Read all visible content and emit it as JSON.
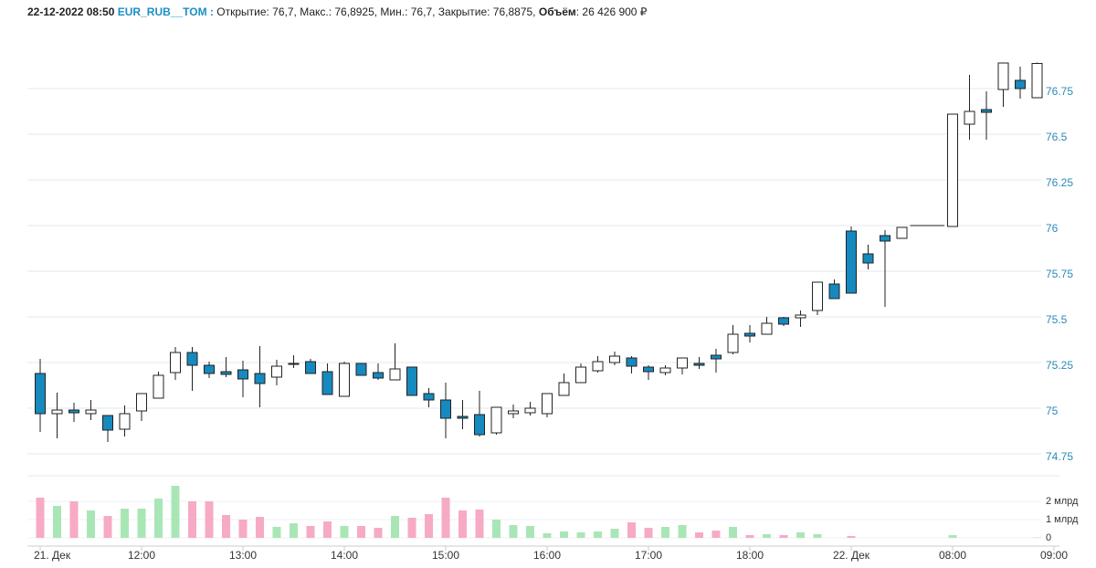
{
  "header": {
    "date": "22-12-2022 08:50",
    "ticker": "EUR_RUB__TOM :",
    "quote": "Открытие: 76,7, Макс.: 76,8925, Мин.: 76,7, Закрытие: 76,8875,",
    "volume_label": "Объём",
    "volume_text": ": 26 426 900 ₽"
  },
  "chart_data": {
    "type": "candlestick",
    "categories": [
      "21. Дек",
      null,
      null,
      null,
      null,
      null,
      "12:00",
      null,
      null,
      null,
      null,
      null,
      "13:00",
      null,
      null,
      null,
      null,
      null,
      "14:00",
      null,
      null,
      null,
      null,
      null,
      "15:00",
      null,
      null,
      null,
      null,
      null,
      "16:00",
      null,
      null,
      null,
      null,
      null,
      "17:00",
      null,
      null,
      null,
      null,
      null,
      "18:00",
      null,
      null,
      null,
      null,
      null,
      "22. Дек",
      null,
      null,
      null,
      null,
      null,
      "08:00",
      null,
      null,
      null,
      null,
      null,
      "09:00"
    ],
    "open": [
      75.19,
      74.97,
      74.99,
      74.97,
      74.96,
      74.885,
      74.985,
      75.055,
      75.195,
      75.305,
      75.235,
      75.2,
      75.21,
      75.19,
      75.17,
      75.24,
      75.255,
      75.2,
      75.065,
      75.245,
      75.195,
      75.155,
      75.225,
      75.08,
      75.045,
      74.955,
      74.965,
      74.865,
      74.97,
      74.975,
      74.97,
      75.07,
      75.14,
      75.205,
      75.25,
      75.275,
      75.225,
      75.195,
      75.22,
      75.245,
      75.29,
      75.305,
      75.41,
      75.405,
      75.495,
      75.495,
      75.535,
      75.68,
      75.97,
      75.845,
      75.945,
      75.93,
      76,
      76,
      75.995,
      76.555,
      76.635,
      76.745,
      76.795,
      76.7,
      null
    ],
    "high": [
      75.27,
      75.085,
      75.03,
      75.045,
      74.96,
      75.015,
      75.08,
      75.2,
      75.335,
      75.335,
      75.255,
      75.28,
      75.26,
      75.34,
      75.265,
      75.29,
      75.27,
      75.245,
      75.255,
      75.245,
      75.245,
      75.355,
      75.225,
      75.11,
      75.14,
      75.045,
      75.095,
      75.005,
      75.02,
      75.035,
      75.08,
      75.19,
      75.245,
      75.285,
      75.31,
      75.285,
      75.235,
      75.235,
      75.275,
      75.28,
      75.325,
      75.455,
      75.455,
      75.5,
      75.5,
      75.535,
      75.69,
      75.705,
      75.995,
      75.895,
      75.975,
      75.99,
      76,
      76,
      76.61,
      76.825,
      76.735,
      76.89,
      76.87,
      76.8925,
      null
    ],
    "low": [
      74.87,
      74.835,
      74.925,
      74.935,
      74.815,
      74.845,
      74.93,
      75.055,
      75.155,
      75.095,
      75.165,
      75.17,
      75.06,
      75.005,
      75.125,
      75.22,
      75.19,
      75.075,
      75.065,
      75.18,
      75.155,
      75.155,
      75.07,
      75.005,
      74.835,
      74.885,
      74.845,
      74.855,
      74.945,
      74.96,
      74.95,
      75.07,
      75.14,
      75.195,
      75.235,
      75.19,
      75.155,
      75.18,
      75.185,
      75.215,
      75.195,
      75.295,
      75.36,
      75.405,
      75.45,
      75.445,
      75.51,
      75.6,
      75.63,
      75.76,
      75.555,
      75.93,
      76,
      76,
      75.995,
      76.47,
      76.47,
      76.65,
      76.695,
      76.7,
      null
    ],
    "close": [
      74.97,
      74.99,
      74.975,
      74.99,
      74.88,
      74.97,
      75.08,
      75.18,
      75.305,
      75.235,
      75.19,
      75.185,
      75.16,
      75.135,
      75.23,
      75.245,
      75.19,
      75.075,
      75.245,
      75.18,
      75.165,
      75.215,
      75.07,
      75.045,
      74.945,
      74.945,
      74.855,
      75.005,
      74.985,
      75.0,
      75.08,
      75.14,
      75.225,
      75.255,
      75.285,
      75.23,
      75.2,
      75.22,
      75.275,
      75.235,
      75.27,
      75.405,
      75.395,
      75.465,
      75.46,
      75.51,
      75.69,
      75.6,
      75.63,
      75.795,
      75.915,
      75.99,
      76,
      76,
      76.61,
      76.625,
      76.62,
      76.89,
      76.75,
      76.8875,
      null
    ],
    "volume": [
      2.2,
      1.75,
      2.0,
      1.5,
      1.2,
      1.6,
      1.6,
      2.15,
      2.85,
      2.0,
      2.0,
      1.25,
      1.0,
      1.15,
      0.6,
      0.8,
      0.65,
      0.9,
      0.65,
      0.65,
      0.55,
      1.2,
      1.1,
      1.3,
      2.2,
      1.5,
      1.55,
      1.0,
      0.7,
      0.65,
      0.25,
      0.35,
      0.3,
      0.35,
      0.5,
      0.85,
      0.55,
      0.6,
      0.7,
      0.3,
      0.4,
      0.6,
      0.15,
      0.2,
      0.15,
      0.3,
      0.2,
      0,
      0.1,
      0,
      0,
      0,
      0,
      0,
      0.15,
      0,
      0,
      0,
      0,
      0.026,
      null
    ],
    "ylim": [
      74.65,
      77.0
    ],
    "yticks": [
      74.75,
      75,
      75.25,
      75.5,
      75.75,
      76,
      76.25,
      76.5,
      76.75
    ],
    "volume_ylim": [
      0,
      3
    ],
    "volume_yticks": [
      {
        "value": 0,
        "label": "0"
      },
      {
        "value": 1,
        "label": "1 млрд"
      },
      {
        "value": 2,
        "label": "2 млрд"
      }
    ],
    "grid": true,
    "down_color": "#1689bf",
    "up_color": "#ffffff",
    "volume_up_color": "#a9e6b6",
    "volume_down_color": "#f7aac5",
    "tick_color": "#2a8ab8"
  }
}
